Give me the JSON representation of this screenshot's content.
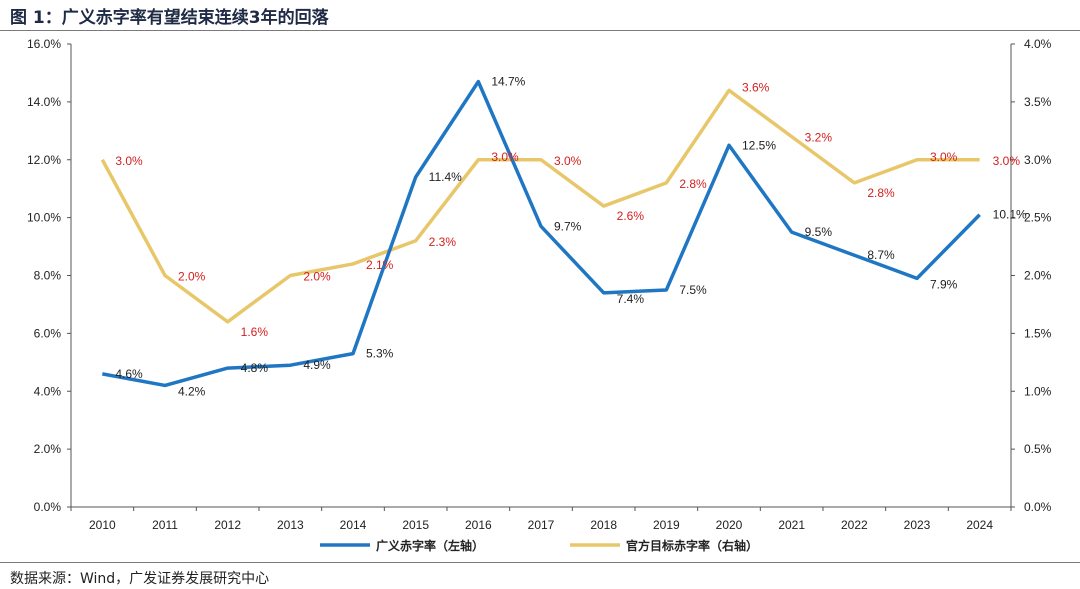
{
  "header": {
    "title": "图 1：广义赤字率有望结束连续3年的回落"
  },
  "footer": {
    "source": "数据来源：Wind，广发证券发展研究中心"
  },
  "colors": {
    "left_series": "#1f77c4",
    "right_series": "#e8c76a",
    "right_label": "#d42020"
  },
  "chart_data": {
    "type": "line",
    "title": "",
    "x": [
      "2010",
      "2011",
      "2012",
      "2013",
      "2014",
      "2015",
      "2016",
      "2017",
      "2018",
      "2019",
      "2020",
      "2021",
      "2022",
      "2023",
      "2024"
    ],
    "y_left": {
      "range": [
        0,
        16
      ],
      "ticks": [
        "0.0%",
        "2.0%",
        "4.0%",
        "6.0%",
        "8.0%",
        "10.0%",
        "12.0%",
        "14.0%",
        "16.0%"
      ]
    },
    "y_right": {
      "range": [
        0,
        4
      ],
      "ticks": [
        "0.0%",
        "0.5%",
        "1.0%",
        "1.5%",
        "2.0%",
        "2.5%",
        "3.0%",
        "3.5%",
        "4.0%"
      ]
    },
    "series": [
      {
        "name": "广义赤字率（左轴）",
        "axis": "left",
        "values": [
          4.6,
          4.2,
          4.8,
          4.9,
          5.3,
          11.4,
          14.7,
          9.7,
          7.4,
          7.5,
          12.5,
          9.5,
          8.7,
          7.9,
          10.1
        ],
        "labels": [
          "4.6%",
          "4.2%",
          "4.8%",
          "4.9%",
          "5.3%",
          "11.4%",
          "14.7%",
          "9.7%",
          "7.4%",
          "7.5%",
          "12.5%",
          "9.5%",
          "8.7%",
          "7.9%",
          "10.1%"
        ]
      },
      {
        "name": "官方目标赤字率（右轴）",
        "axis": "right",
        "values": [
          3.0,
          2.0,
          1.6,
          2.0,
          2.1,
          2.3,
          3.0,
          3.0,
          2.6,
          2.8,
          3.6,
          3.2,
          2.8,
          3.0,
          3.0
        ],
        "labels": [
          "3.0%",
          "2.0%",
          "1.6%",
          "2.0%",
          "2.1%",
          "2.3%",
          "3.0%",
          "3.0%",
          "2.6%",
          "2.8%",
          "3.6%",
          "3.2%",
          "2.8%",
          "3.0%",
          "3.0%"
        ]
      }
    ],
    "grid": false,
    "legend": "bottom-center"
  }
}
